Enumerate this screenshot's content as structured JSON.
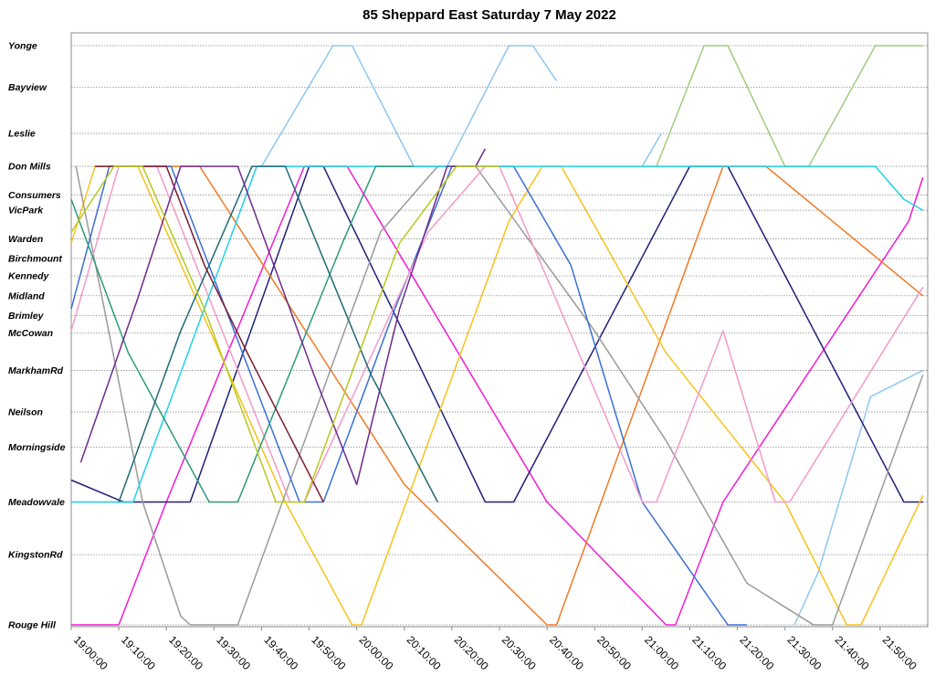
{
  "chart_data": {
    "type": "line",
    "title": "85 Sheppard East Saturday 7 May 2022",
    "xlabel": "",
    "ylabel": "",
    "xlim": [
      "19:00:00",
      "22:00:00"
    ],
    "x_tick_labels": [
      "19:00:00",
      "19:10:00",
      "19:20:00",
      "19:30:00",
      "19:40:00",
      "19:50:00",
      "20:00:00",
      "20:10:00",
      "20:20:00",
      "20:30:00",
      "20:40:00",
      "20:50:00",
      "21:00:00",
      "21:10:00",
      "21:20:00",
      "21:30:00",
      "21:40:00",
      "21:50:00"
    ],
    "stops": [
      {
        "name": "Yonge",
        "km": 0.0
      },
      {
        "name": "Bayview",
        "km": 1.9
      },
      {
        "name": "Leslie",
        "km": 4.0
      },
      {
        "name": "Don Mills",
        "km": 5.5
      },
      {
        "name": "Consumers",
        "km": 6.8
      },
      {
        "name": "VicPark",
        "km": 7.5
      },
      {
        "name": "Warden",
        "km": 8.8
      },
      {
        "name": "Birchmount",
        "km": 9.7
      },
      {
        "name": "Kennedy",
        "km": 10.5
      },
      {
        "name": "Midland",
        "km": 11.4
      },
      {
        "name": "Brimley",
        "km": 12.3
      },
      {
        "name": "McCowan",
        "km": 13.1
      },
      {
        "name": "MarkhamRd",
        "km": 14.8
      },
      {
        "name": "Neilson",
        "km": 16.7
      },
      {
        "name": "Morningside",
        "km": 18.3
      },
      {
        "name": "Meadowvale",
        "km": 20.8
      },
      {
        "name": "KingstonRd",
        "km": 23.2
      },
      {
        "name": "Rouge Hill",
        "km": 26.4
      }
    ],
    "grid": true,
    "legend": "none",
    "series": [
      {
        "color": "#8ec7ee",
        "points": [
          [
            "19:40:00",
            5.5
          ],
          [
            "19:55:00",
            0.0
          ],
          [
            "19:59:00",
            0.0
          ],
          [
            "20:12:00",
            5.5
          ],
          [
            "20:19:00",
            5.5
          ],
          [
            "20:32:00",
            0.0
          ],
          [
            "20:37:00",
            0.0
          ],
          [
            "20:42:00",
            1.6
          ]
        ]
      },
      {
        "color": "#a0cc7e",
        "points": [
          [
            "21:03:00",
            5.5
          ],
          [
            "21:13:00",
            0.0
          ],
          [
            "21:18:00",
            0.0
          ],
          [
            "21:30:00",
            5.5
          ],
          [
            "21:35:00",
            5.5
          ],
          [
            "21:49:00",
            0.0
          ],
          [
            "21:59:00",
            0.0
          ]
        ]
      },
      {
        "color": "#8ec7ee",
        "points": [
          [
            "21:00:00",
            5.5
          ],
          [
            "21:04:00",
            4.0
          ]
        ]
      },
      {
        "color": "#8ec7ee",
        "points": [
          [
            "21:32:00",
            26.4
          ],
          [
            "21:37:00",
            24.0
          ],
          [
            "21:48:00",
            16.0
          ],
          [
            "21:59:00",
            14.8
          ]
        ]
      },
      {
        "color": "#f01bd4",
        "points": [
          [
            "19:00:00",
            26.4
          ],
          [
            "19:10:00",
            26.4
          ],
          [
            "19:20:00",
            20.8
          ],
          [
            "19:49:00",
            5.5
          ],
          [
            "19:58:00",
            5.5
          ],
          [
            "20:40:00",
            20.8
          ],
          [
            "21:05:00",
            26.4
          ],
          [
            "21:07:00",
            26.4
          ],
          [
            "21:17:00",
            20.8
          ],
          [
            "21:56:00",
            8.0
          ],
          [
            "21:59:00",
            6.0
          ]
        ]
      },
      {
        "color": "#1f1f7a",
        "points": [
          [
            "19:00:00",
            19.8
          ],
          [
            "19:11:00",
            20.8
          ],
          [
            "19:25:00",
            20.8
          ],
          [
            "19:50:00",
            5.5
          ],
          [
            "19:53:00",
            5.5
          ],
          [
            "20:27:00",
            20.8
          ],
          [
            "20:33:00",
            20.8
          ],
          [
            "21:10:00",
            5.5
          ],
          [
            "21:18:00",
            5.5
          ],
          [
            "21:55:00",
            20.8
          ],
          [
            "21:59:00",
            20.8
          ]
        ]
      },
      {
        "color": "#f07a23",
        "points": [
          [
            "19:15:00",
            5.5
          ],
          [
            "19:27:00",
            5.5
          ],
          [
            "20:10:00",
            20.0
          ],
          [
            "20:40:00",
            26.4
          ],
          [
            "20:42:00",
            26.4
          ],
          [
            "21:17:00",
            5.5
          ],
          [
            "21:26:00",
            5.5
          ],
          [
            "21:59:00",
            11.4
          ]
        ]
      },
      {
        "color": "#f7c21c",
        "points": [
          [
            "19:00:00",
            9.0
          ],
          [
            "19:05:00",
            5.5
          ],
          [
            "19:14:00",
            5.5
          ],
          [
            "19:45:00",
            20.8
          ],
          [
            "19:59:00",
            26.4
          ],
          [
            "20:01:00",
            26.4
          ],
          [
            "20:32:00",
            8.0
          ],
          [
            "20:39:00",
            5.5
          ],
          [
            "20:43:00",
            5.5
          ],
          [
            "21:05:00",
            14.0
          ],
          [
            "21:30:00",
            20.8
          ],
          [
            "21:43:00",
            26.4
          ],
          [
            "21:46:00",
            26.4
          ],
          [
            "21:59:00",
            20.5
          ]
        ]
      },
      {
        "color": "#9a9a9a",
        "points": [
          [
            "19:01:00",
            5.5
          ],
          [
            "19:15:00",
            20.8
          ],
          [
            "19:23:00",
            26.0
          ],
          [
            "19:25:00",
            26.4
          ],
          [
            "19:35:00",
            26.4
          ],
          [
            "20:05:00",
            8.5
          ],
          [
            "20:17:00",
            5.5
          ],
          [
            "20:25:00",
            5.5
          ],
          [
            "20:50:00",
            13.0
          ],
          [
            "21:05:00",
            18.0
          ],
          [
            "21:22:00",
            24.5
          ],
          [
            "21:36:00",
            26.4
          ],
          [
            "21:40:00",
            26.4
          ],
          [
            "21:59:00",
            15.0
          ]
        ]
      },
      {
        "color": "#3b6fd6",
        "points": [
          [
            "19:00:00",
            12.0
          ],
          [
            "19:08:00",
            5.5
          ],
          [
            "19:21:00",
            5.5
          ],
          [
            "19:48:00",
            20.8
          ],
          [
            "19:53:00",
            20.8
          ],
          [
            "20:08:00",
            12.0
          ],
          [
            "20:20:00",
            5.5
          ],
          [
            "20:33:00",
            5.5
          ],
          [
            "20:45:00",
            10.0
          ],
          [
            "21:00:00",
            20.8
          ],
          [
            "21:18:00",
            26.4
          ],
          [
            "21:22:00",
            26.4
          ]
        ]
      },
      {
        "color": "#f29ac7",
        "points": [
          [
            "19:00:00",
            13.0
          ],
          [
            "19:10:00",
            5.5
          ],
          [
            "19:18:00",
            5.5
          ],
          [
            "19:46:00",
            20.8
          ],
          [
            "19:49:00",
            20.8
          ],
          [
            "20:15:00",
            8.5
          ],
          [
            "20:27:00",
            5.5
          ],
          [
            "20:30:00",
            5.5
          ],
          [
            "21:00:00",
            20.8
          ],
          [
            "21:03:00",
            20.8
          ],
          [
            "21:17:00",
            13.0
          ],
          [
            "21:28:00",
            20.8
          ],
          [
            "21:31:00",
            20.8
          ],
          [
            "21:59:00",
            11.0
          ]
        ]
      },
      {
        "color": "#1fd0e8",
        "points": [
          [
            "19:00:00",
            20.8
          ],
          [
            "19:13:00",
            20.8
          ],
          [
            "19:39:00",
            5.5
          ],
          [
            "20:00:00",
            5.5
          ],
          [
            "21:20:00",
            5.5
          ],
          [
            "21:35:00",
            5.5
          ],
          [
            "21:49:00",
            5.5
          ],
          [
            "21:55:00",
            7.0
          ],
          [
            "21:59:00",
            7.5
          ]
        ]
      },
      {
        "color": "#2b9a7a",
        "points": [
          [
            "19:00:00",
            7.0
          ],
          [
            "19:12:00",
            14.0
          ],
          [
            "19:29:00",
            20.8
          ],
          [
            "19:35:00",
            20.8
          ],
          [
            "19:57:00",
            9.0
          ],
          [
            "20:04:00",
            5.5
          ],
          [
            "20:12:00",
            5.5
          ]
        ]
      },
      {
        "color": "#1e6a76",
        "points": [
          [
            "19:10:00",
            20.8
          ],
          [
            "19:23:00",
            13.0
          ],
          [
            "19:38:00",
            5.5
          ],
          [
            "19:45:00",
            5.5
          ],
          [
            "20:03:00",
            15.0
          ],
          [
            "20:17:00",
            20.8
          ]
        ]
      },
      {
        "color": "#7a1a2e",
        "points": [
          [
            "19:05:00",
            5.5
          ],
          [
            "19:20:00",
            5.5
          ],
          [
            "19:28:00",
            10.0
          ],
          [
            "19:37:00",
            14.0
          ],
          [
            "19:53:00",
            20.8
          ]
        ]
      },
      {
        "color": "#6d2a8c",
        "points": [
          [
            "19:02:00",
            19.0
          ],
          [
            "19:14:00",
            11.5
          ],
          [
            "19:23:00",
            5.5
          ],
          [
            "19:35:00",
            5.5
          ],
          [
            "19:51:00",
            15.0
          ],
          [
            "20:00:00",
            20.0
          ],
          [
            "20:09:00",
            12.0
          ],
          [
            "20:19:00",
            5.5
          ],
          [
            "20:25:00",
            5.5
          ],
          [
            "20:27:00",
            4.7
          ]
        ]
      },
      {
        "color": "#b7c91e",
        "points": [
          [
            "19:00:00",
            8.5
          ],
          [
            "19:09:00",
            5.5
          ],
          [
            "19:15:00",
            5.5
          ],
          [
            "19:28:00",
            12.0
          ],
          [
            "19:43:00",
            20.8
          ],
          [
            "19:49:00",
            20.8
          ],
          [
            "20:09:00",
            9.0
          ],
          [
            "20:21:00",
            5.5
          ],
          [
            "20:30:00",
            5.5
          ]
        ]
      }
    ]
  }
}
